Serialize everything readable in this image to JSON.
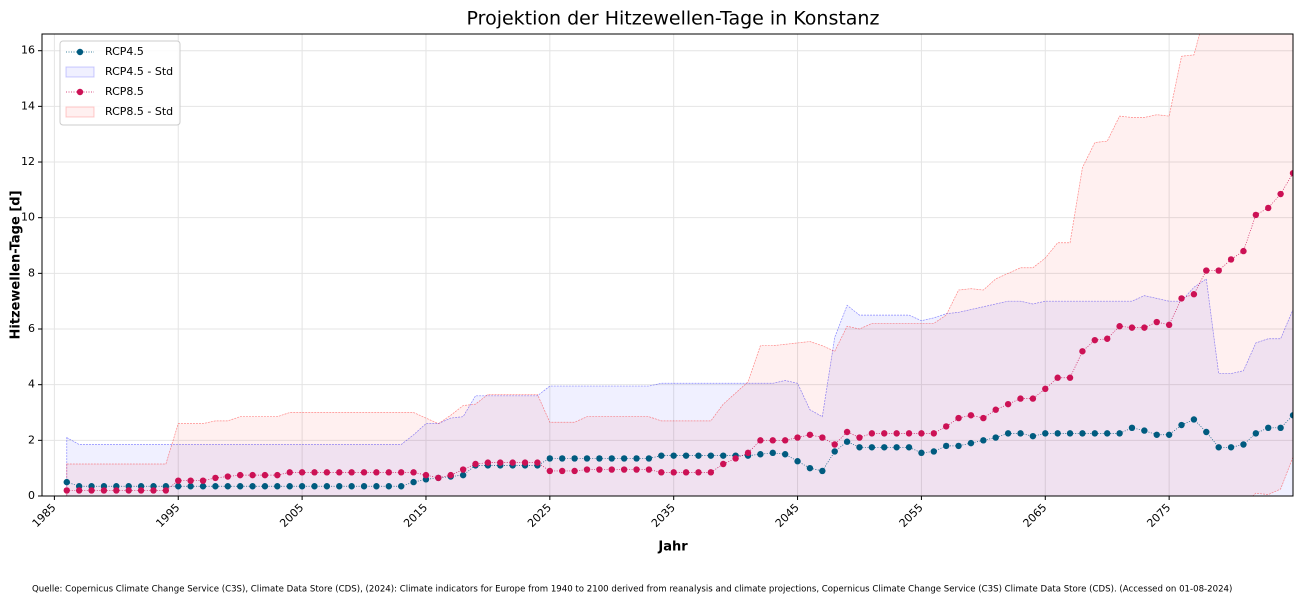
{
  "chart_data": {
    "type": "line",
    "title": "Projektion der Hitzewellen-Tage in Konstanz",
    "xlabel": "Jahr",
    "ylabel": "Hitzewellen-Tage [d]",
    "source": "Quelle: Copernicus Climate Change Service (C3S), Climate Data Store (CDS), (2024): Climate indicators for Europe from 1940 to 2100 derived from reanalysis and climate projections, Copernicus Climate Change Service (C3S) Climate Data Store (CDS). (Accessed on 01-08-2024)",
    "x": [
      1986,
      1987,
      1988,
      1989,
      1990,
      1991,
      1992,
      1993,
      1994,
      1995,
      1996,
      1997,
      1998,
      1999,
      2000,
      2001,
      2002,
      2003,
      2004,
      2005,
      2006,
      2007,
      2008,
      2009,
      2010,
      2011,
      2012,
      2013,
      2014,
      2015,
      2016,
      2017,
      2018,
      2019,
      2020,
      2021,
      2022,
      2023,
      2024,
      2025,
      2026,
      2027,
      2028,
      2029,
      2030,
      2031,
      2032,
      2033,
      2034,
      2035,
      2036,
      2037,
      2038,
      2039,
      2040,
      2041,
      2042,
      2043,
      2044,
      2045,
      2046,
      2047,
      2048,
      2049,
      2050,
      2051,
      2052,
      2053,
      2054,
      2055,
      2056,
      2057,
      2058,
      2059,
      2060,
      2061,
      2062,
      2063,
      2064,
      2065,
      2066,
      2067,
      2068,
      2069,
      2070,
      2071,
      2072,
      2073,
      2074,
      2075,
      2076,
      2077,
      2078,
      2079,
      2080,
      2081,
      2082,
      2083,
      2084,
      2085
    ],
    "series": [
      {
        "name": "RCP4.5",
        "color": "#005b7f",
        "std_name": "RCP4.5 - Std",
        "std_color": "#0000ff",
        "values": [
          0.5,
          0.35,
          0.35,
          0.35,
          0.35,
          0.35,
          0.35,
          0.35,
          0.35,
          0.35,
          0.35,
          0.35,
          0.35,
          0.35,
          0.35,
          0.35,
          0.35,
          0.35,
          0.35,
          0.35,
          0.35,
          0.35,
          0.35,
          0.35,
          0.35,
          0.35,
          0.35,
          0.35,
          0.5,
          0.6,
          0.65,
          0.7,
          0.75,
          1.1,
          1.1,
          1.1,
          1.1,
          1.1,
          1.1,
          1.35,
          1.35,
          1.35,
          1.35,
          1.35,
          1.35,
          1.35,
          1.35,
          1.35,
          1.45,
          1.45,
          1.45,
          1.45,
          1.45,
          1.45,
          1.45,
          1.45,
          1.5,
          1.55,
          1.5,
          1.25,
          1.0,
          0.9,
          1.6,
          1.95,
          1.75,
          1.75,
          1.75,
          1.75,
          1.75,
          1.55,
          1.6,
          1.8,
          1.8,
          1.9,
          2.0,
          2.1,
          2.25,
          2.25,
          2.15,
          2.25,
          2.25,
          2.25,
          2.25,
          2.25,
          2.25,
          2.25,
          2.45,
          2.35,
          2.2,
          2.2,
          2.55,
          2.75,
          2.3,
          1.75,
          1.75,
          1.85,
          2.25,
          2.45,
          2.45,
          2.9
        ],
        "std": [
          1.6,
          1.5,
          1.5,
          1.5,
          1.5,
          1.5,
          1.5,
          1.5,
          1.5,
          1.5,
          1.5,
          1.5,
          1.5,
          1.5,
          1.5,
          1.5,
          1.5,
          1.5,
          1.5,
          1.5,
          1.5,
          1.5,
          1.5,
          1.5,
          1.5,
          1.5,
          1.5,
          1.5,
          1.7,
          2.0,
          1.95,
          2.1,
          2.1,
          2.5,
          2.5,
          2.5,
          2.5,
          2.5,
          2.5,
          2.6,
          2.6,
          2.6,
          2.6,
          2.6,
          2.6,
          2.6,
          2.6,
          2.6,
          2.6,
          2.6,
          2.6,
          2.6,
          2.6,
          2.6,
          2.6,
          2.6,
          2.55,
          2.5,
          2.65,
          2.8,
          2.1,
          1.95,
          4.1,
          4.9,
          4.75,
          4.75,
          4.75,
          4.75,
          4.75,
          4.75,
          4.8,
          4.75,
          4.8,
          4.8,
          4.8,
          4.8,
          4.75,
          4.75,
          4.75,
          4.75,
          4.75,
          4.75,
          4.75,
          4.75,
          4.75,
          4.75,
          4.55,
          4.85,
          4.9,
          4.8,
          4.45,
          4.75,
          5.5,
          2.65,
          2.65,
          2.65,
          3.25,
          3.2,
          3.2,
          3.8
        ]
      },
      {
        "name": "RCP8.5",
        "color": "#cc1155",
        "std_name": "RCP8.5 - Std",
        "std_color": "#ff0000",
        "values": [
          0.2,
          0.2,
          0.2,
          0.2,
          0.2,
          0.2,
          0.2,
          0.2,
          0.2,
          0.55,
          0.55,
          0.55,
          0.65,
          0.7,
          0.75,
          0.75,
          0.75,
          0.75,
          0.85,
          0.85,
          0.85,
          0.85,
          0.85,
          0.85,
          0.85,
          0.85,
          0.85,
          0.85,
          0.85,
          0.75,
          0.65,
          0.75,
          0.95,
          1.15,
          1.2,
          1.2,
          1.2,
          1.2,
          1.2,
          0.9,
          0.9,
          0.9,
          0.95,
          0.95,
          0.95,
          0.95,
          0.95,
          0.95,
          0.85,
          0.85,
          0.85,
          0.85,
          0.85,
          1.15,
          1.35,
          1.55,
          2.0,
          2.0,
          2.0,
          2.1,
          2.2,
          2.1,
          1.85,
          2.3,
          2.1,
          2.25,
          2.25,
          2.25,
          2.25,
          2.25,
          2.25,
          2.5,
          2.8,
          2.9,
          2.8,
          3.1,
          3.3,
          3.5,
          3.5,
          3.85,
          4.25,
          4.25,
          5.2,
          5.6,
          5.65,
          6.1,
          6.05,
          6.05,
          6.25,
          6.15,
          7.1,
          7.25,
          8.1,
          8.1,
          8.5,
          8.8,
          10.1,
          10.35,
          10.85,
          11.6
        ],
        "std": [
          0.95,
          0.95,
          0.95,
          0.95,
          0.95,
          0.95,
          0.95,
          0.95,
          0.95,
          2.05,
          2.05,
          2.05,
          2.05,
          2.0,
          2.1,
          2.1,
          2.1,
          2.1,
          2.15,
          2.15,
          2.15,
          2.15,
          2.15,
          2.15,
          2.15,
          2.15,
          2.15,
          2.15,
          2.15,
          2.05,
          1.95,
          2.15,
          2.3,
          2.15,
          2.45,
          2.45,
          2.45,
          2.45,
          2.45,
          1.75,
          1.75,
          1.75,
          1.9,
          1.9,
          1.9,
          1.9,
          1.9,
          1.9,
          1.85,
          1.85,
          1.85,
          1.85,
          1.85,
          2.15,
          2.35,
          2.55,
          3.4,
          3.4,
          3.45,
          3.4,
          3.35,
          3.3,
          3.35,
          3.8,
          3.9,
          3.95,
          3.95,
          3.95,
          3.95,
          3.95,
          3.95,
          4.0,
          4.6,
          4.55,
          4.6,
          4.7,
          4.7,
          4.7,
          4.7,
          4.7,
          4.85,
          4.85,
          6.6,
          7.1,
          7.1,
          7.55,
          7.55,
          7.55,
          7.45,
          7.5,
          8.7,
          8.6,
          9.4,
          9.4,
          9.3,
          9.1,
          10.0,
          10.3,
          10.6,
          10.2
        ]
      }
    ],
    "xlim": [
      1984,
      2085
    ],
    "ylim": [
      0,
      16.6
    ],
    "xticks": [
      1985,
      1995,
      2005,
      2015,
      2025,
      2035,
      2045,
      2055,
      2065,
      2075
    ],
    "yticks": [
      0,
      2,
      4,
      6,
      8,
      10,
      12,
      14,
      16
    ],
    "grid": true,
    "legend": "upper left"
  }
}
